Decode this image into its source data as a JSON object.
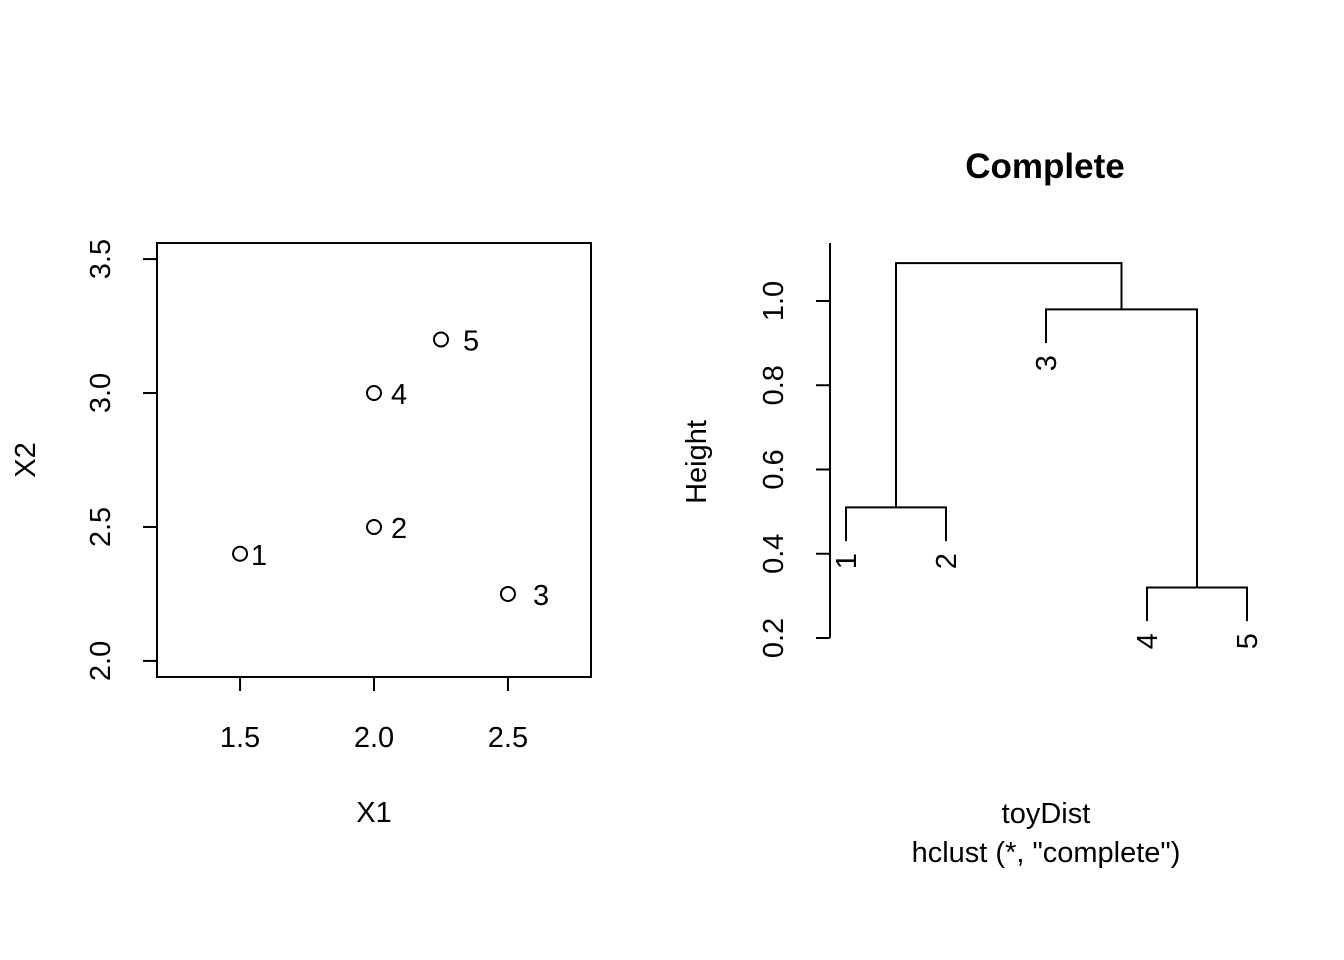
{
  "chart_data": [
    {
      "type": "scatter",
      "xlabel": "X1",
      "ylabel": "X2",
      "xlim": [
        1.19,
        2.81
      ],
      "ylim": [
        1.94,
        3.56
      ],
      "xticks": [
        1.5,
        2.0,
        2.5
      ],
      "yticks": [
        2.0,
        2.5,
        3.0,
        3.5
      ],
      "grid": false,
      "points": [
        {
          "label": "1",
          "x": 1.5,
          "y": 2.4
        },
        {
          "label": "2",
          "x": 2.0,
          "y": 2.5
        },
        {
          "label": "3",
          "x": 2.5,
          "y": 2.25
        },
        {
          "label": "4",
          "x": 2.0,
          "y": 3.0
        },
        {
          "label": "5",
          "x": 2.25,
          "y": 3.2
        }
      ]
    },
    {
      "type": "dendrogram",
      "title": "Complete",
      "ylabel": "Height",
      "sub_labels": [
        "toyDist",
        "hclust (*, \"complete\")"
      ],
      "yticks": [
        0.2,
        0.4,
        0.6,
        0.8,
        1.0
      ],
      "ylim": [
        0.2,
        1.1
      ],
      "leaf_order": [
        "1",
        "2",
        "3",
        "4",
        "5"
      ],
      "leaves": [
        {
          "label": "1",
          "height": 0.43
        },
        {
          "label": "2",
          "height": 0.43
        },
        {
          "label": "3",
          "height": 0.9
        },
        {
          "label": "4",
          "height": 0.24
        },
        {
          "label": "5",
          "height": 0.24
        }
      ],
      "merges": [
        {
          "left": "4",
          "right": "5",
          "height": 0.32
        },
        {
          "left": "1",
          "right": "2",
          "height": 0.51
        },
        {
          "left": "3",
          "right": "4+5",
          "height": 0.98
        },
        {
          "left": "1+2",
          "right": "3+4+5",
          "height": 1.09
        }
      ]
    }
  ]
}
